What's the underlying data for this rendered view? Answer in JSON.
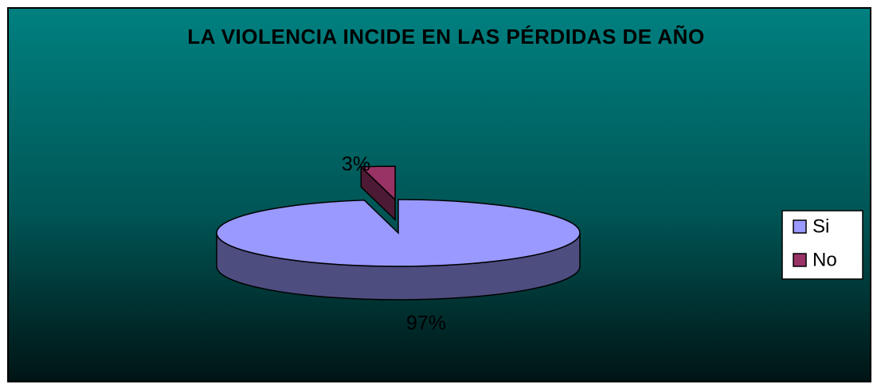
{
  "chart_data": {
    "type": "pie",
    "title": "LA VIOLENCIA INCIDE EN LAS PÉRDIDAS DE AÑO",
    "categories": [
      "Si",
      "No"
    ],
    "values": [
      97,
      3
    ],
    "value_labels": [
      "97%",
      "3%"
    ],
    "colors": [
      "#9999ff",
      "#993366"
    ],
    "legend": "right"
  }
}
